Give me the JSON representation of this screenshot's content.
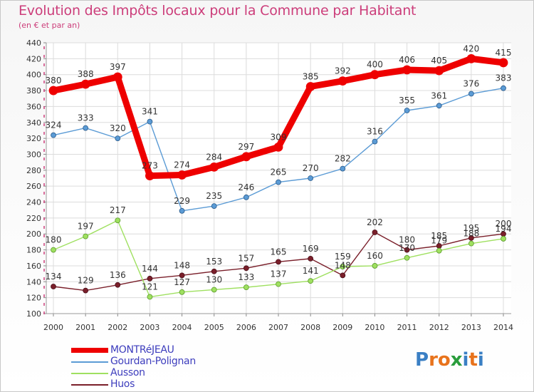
{
  "chart_data": {
    "type": "line",
    "title": "Evolution des Impôts locaux pour la Commune par Habitant",
    "subtitle": "(en € et par an)",
    "xlabel": "",
    "ylabel": "",
    "categories": [
      "2000",
      "2001",
      "2002",
      "2003",
      "2004",
      "2005",
      "2006",
      "2007",
      "2008",
      "2009",
      "2010",
      "2011",
      "2012",
      "2013",
      "2014"
    ],
    "ylim": [
      100,
      440
    ],
    "yticks": [
      100,
      120,
      140,
      160,
      180,
      200,
      220,
      240,
      260,
      280,
      300,
      320,
      340,
      360,
      380,
      400,
      420,
      440
    ],
    "grid": true,
    "legend_position": "bottom-left",
    "series": [
      {
        "name": "MONTRéJEAU",
        "color": "#ee0000",
        "values": [
          380,
          388,
          397,
          273,
          274,
          284,
          297,
          309,
          385,
          392,
          400,
          406,
          405,
          420,
          415
        ]
      },
      {
        "name": "Gourdan-Polignan",
        "color": "#5b9bd5",
        "values": [
          324,
          333,
          320,
          341,
          229,
          235,
          246,
          265,
          270,
          282,
          316,
          355,
          361,
          376,
          383
        ]
      },
      {
        "name": "Ausson",
        "color": "#9fe060",
        "values": [
          180,
          197,
          217,
          121,
          127,
          130,
          133,
          137,
          141,
          159,
          160,
          170,
          179,
          188,
          194
        ]
      },
      {
        "name": "Huos",
        "color": "#7a1f2a",
        "values": [
          134,
          129,
          136,
          144,
          148,
          153,
          157,
          165,
          169,
          148,
          202,
          180,
          185,
          195,
          200
        ]
      }
    ]
  },
  "logo": {
    "text": "Proxiti",
    "letters": [
      "P",
      "r",
      "o",
      "x",
      "i",
      "t",
      "i"
    ],
    "colors": [
      "#3a7fc4",
      "#e8731c",
      "#e8731c",
      "#2a9d3c",
      "#3a7fc4",
      "#e8731c",
      "#3a7fc4"
    ]
  }
}
